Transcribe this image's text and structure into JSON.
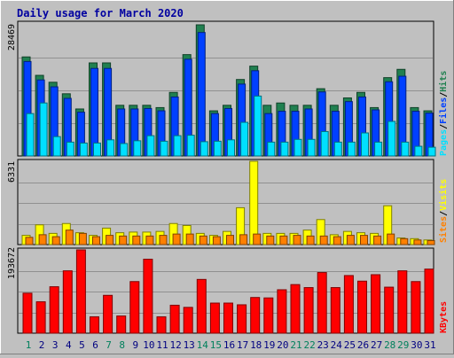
{
  "chart_data": [
    {
      "type": "bar",
      "title": "Daily usage for March 2020",
      "ymax_label": "28469",
      "categories": [
        "1",
        "2",
        "3",
        "4",
        "5",
        "6",
        "7",
        "8",
        "9",
        "10",
        "11",
        "12",
        "13",
        "14",
        "15",
        "16",
        "17",
        "18",
        "19",
        "20",
        "21",
        "22",
        "23",
        "24",
        "25",
        "26",
        "27",
        "28",
        "29",
        "30",
        "31"
      ],
      "weekend_days": [
        "1",
        "7",
        "8",
        "14",
        "15",
        "21",
        "22",
        "28",
        "29"
      ],
      "legend": [
        "Pages",
        "Files",
        "Hits"
      ],
      "colors": {
        "Hits": "#208050",
        "Files": "#0040ff",
        "Pages": "#00e0ff"
      },
      "ylim": [
        0,
        28469
      ],
      "series": [
        {
          "name": "Hits",
          "values": [
            21500,
            17500,
            16000,
            13500,
            10200,
            20200,
            20200,
            11000,
            11000,
            11000,
            10500,
            13800,
            22000,
            28469,
            9800,
            11000,
            16600,
            19500,
            11000,
            11500,
            11000,
            11000,
            14600,
            11000,
            12600,
            13800,
            10500,
            17000,
            18800,
            10500,
            9800
          ]
        },
        {
          "name": "Files",
          "values": [
            20500,
            16500,
            15000,
            12500,
            9500,
            19000,
            19000,
            10200,
            10200,
            10300,
            9800,
            12800,
            21000,
            26800,
            9200,
            10300,
            15600,
            18500,
            9200,
            9700,
            9700,
            10200,
            13900,
            9700,
            11800,
            12800,
            10000,
            16100,
            17300,
            9700,
            9300
          ]
        },
        {
          "name": "Pages",
          "values": [
            9200,
            11500,
            4200,
            3000,
            2800,
            2800,
            3500,
            2700,
            3300,
            4400,
            3200,
            4400,
            4500,
            3100,
            3200,
            3500,
            7300,
            13000,
            3000,
            3000,
            3600,
            3600,
            5300,
            3000,
            3000,
            5000,
            3000,
            7500,
            3000,
            2100,
            1900
          ]
        }
      ]
    },
    {
      "type": "bar",
      "ymax_label": "6331",
      "legend": [
        "Sites",
        "Visits"
      ],
      "colors": {
        "Visits": "#ffff00",
        "Sites": "#ff8000"
      },
      "ylim": [
        0,
        6331
      ],
      "series": [
        {
          "name": "Visits",
          "values": [
            700,
            1500,
            850,
            1600,
            900,
            700,
            1250,
            900,
            950,
            950,
            1000,
            1600,
            1450,
            850,
            700,
            1000,
            2800,
            6331,
            850,
            850,
            850,
            1100,
            1900,
            750,
            1000,
            900,
            850,
            2950,
            500,
            450,
            350
          ]
        },
        {
          "name": "Sites",
          "values": [
            550,
            750,
            600,
            1100,
            850,
            600,
            700,
            650,
            650,
            650,
            700,
            800,
            800,
            650,
            600,
            700,
            750,
            800,
            650,
            650,
            700,
            650,
            650,
            600,
            700,
            700,
            650,
            800,
            450,
            350,
            300
          ]
        }
      ]
    },
    {
      "type": "bar",
      "ymax_label": "193672",
      "legend": [
        "KBytes"
      ],
      "colors": {
        "KBytes": "#ff0000"
      },
      "ylim": [
        0,
        193672
      ],
      "series": [
        {
          "name": "KBytes",
          "values": [
            93000,
            73000,
            108000,
            145000,
            193672,
            38000,
            88000,
            40000,
            120000,
            172000,
            38000,
            65000,
            60000,
            125000,
            70000,
            70000,
            66000,
            83000,
            82000,
            101000,
            113000,
            106000,
            141000,
            106000,
            134000,
            121000,
            136000,
            107000,
            145000,
            120000,
            149000
          ]
        }
      ]
    }
  ]
}
